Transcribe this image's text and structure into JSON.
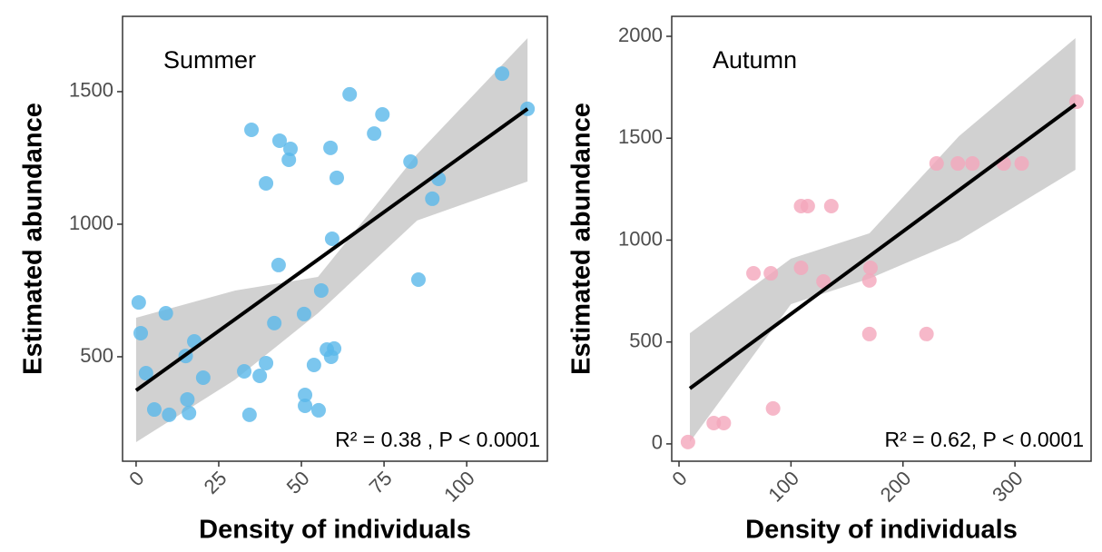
{
  "chart_data": [
    {
      "type": "scatter",
      "title": "Summer",
      "x_label": "Density of individuals",
      "y_label": "Estimated abundance",
      "annotation": "R² = 0.38 , P < 0.0001",
      "color": "#5ab8ea",
      "x": [
        0.8,
        1.4,
        3,
        5.5,
        9,
        10,
        15,
        15.5,
        16,
        17.6,
        20.3,
        32.7,
        34.3,
        34.9,
        37.4,
        39.3,
        39.3,
        41.8,
        43.1,
        43.4,
        46.2,
        46.7,
        50.8,
        51.1,
        51.1,
        53.8,
        55.2,
        56,
        57.7,
        58.8,
        59,
        59.3,
        59.9,
        60.7,
        64.6,
        72,
        74.5,
        83,
        85.4,
        89.6,
        91.5,
        110.7,
        118.4
      ],
      "values": [
        705,
        589,
        438,
        301,
        664,
        281,
        503,
        339,
        288,
        558,
        421,
        445,
        281,
        1356,
        428,
        476,
        1154,
        627,
        846,
        1315,
        1243,
        1284,
        661,
        356,
        315,
        469,
        298,
        750,
        527,
        1288,
        500,
        945,
        531,
        1175,
        1490,
        1342,
        1414,
        1236,
        791,
        1096,
        1171,
        1568,
        1435
      ],
      "fit": {
        "x": [
          0,
          118.4
        ],
        "y": [
          373,
          1435
        ]
      },
      "band": {
        "x": [
          0,
          30,
          55,
          85,
          118.4
        ],
        "upper": [
          647,
          750,
          801,
          1264,
          1702
        ],
        "lower": [
          178,
          414,
          664,
          1014,
          1161
        ]
      },
      "xlim": [
        -4.1,
        124.4
      ],
      "ylim": [
        106,
        1784
      ],
      "xticks": [
        0,
        25,
        50,
        75,
        100
      ],
      "yticks": [
        500,
        1000,
        1500
      ]
    },
    {
      "type": "scatter",
      "title": "Autumn",
      "x_label": "Density of individuals",
      "y_label": "Estimated abundance",
      "annotation": "R² = 0.62, P < 0.0001",
      "color": "#f4a6bb",
      "x": [
        8,
        31,
        40,
        66.5,
        82,
        84,
        109,
        115,
        136,
        109,
        129,
        170,
        171,
        170,
        221,
        230,
        249,
        262,
        290,
        306,
        355
      ],
      "values": [
        9,
        102,
        102,
        837,
        837,
        174,
        1167,
        1167,
        1167,
        864,
        797,
        802,
        864,
        539,
        539,
        1376,
        1376,
        1376,
        1376,
        1376,
        1679
      ],
      "fit": {
        "x": [
          9.7,
          354
        ],
        "y": [
          272,
          1666
        ]
      },
      "band": {
        "x": [
          9.7,
          100,
          170,
          250,
          354
        ],
        "upper": [
          543,
          909,
          1033,
          1510,
          1991
        ],
        "lower": [
          9,
          686,
          811,
          998,
          1345
        ]
      },
      "xlim": [
        -6.5,
        368
      ],
      "ylim": [
        -85,
        2098
      ],
      "xticks": [
        0,
        100,
        200,
        300
      ],
      "yticks": [
        0,
        500,
        1000,
        1500,
        2000
      ]
    }
  ]
}
